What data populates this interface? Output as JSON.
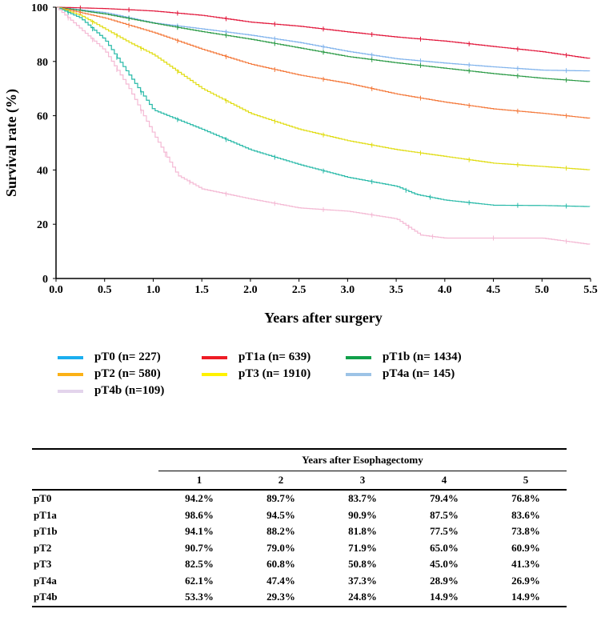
{
  "chart_data": {
    "type": "line",
    "title": "",
    "xlabel": "Years after surgery",
    "ylabel": "Survival rate (%)",
    "xlim": [
      0,
      5.5
    ],
    "ylim": [
      0,
      100
    ],
    "xticks": [
      "0.0",
      "0.5",
      "1.0",
      "1.5",
      "2.0",
      "2.5",
      "3.0",
      "3.5",
      "4.0",
      "4.5",
      "5.0",
      "5.5"
    ],
    "yticks": [
      "0",
      "20",
      "40",
      "60",
      "80",
      "100"
    ],
    "legend_position": "bottom",
    "series": [
      {
        "name": "pT0 (n= 227)",
        "legend_color": "#1aaeef",
        "line_color": "#7fb2ec",
        "x": [
          0,
          0.5,
          1,
          1.5,
          2,
          2.5,
          3,
          3.5,
          4,
          4.5,
          5,
          5.5
        ],
        "y": [
          100,
          98,
          94.2,
          92,
          89.7,
          87,
          83.7,
          81,
          79.4,
          78,
          76.8,
          76.5
        ]
      },
      {
        "name": "pT1a (n= 639)",
        "legend_color": "#ee1c25",
        "line_color": "#e2173b",
        "x": [
          0,
          0.5,
          1,
          1.5,
          2,
          2.5,
          3,
          3.5,
          4,
          4.5,
          5,
          5.5
        ],
        "y": [
          100,
          99.5,
          98.6,
          97,
          94.5,
          93,
          90.9,
          89,
          87.5,
          85.5,
          83.6,
          81
        ]
      },
      {
        "name": "pT1b (n= 1434)",
        "legend_color": "#10a04a",
        "line_color": "#2a9a45",
        "x": [
          0,
          0.5,
          1,
          1.5,
          2,
          2.5,
          3,
          3.5,
          4,
          4.5,
          5,
          5.5
        ],
        "y": [
          100,
          97.5,
          94.1,
          91,
          88.2,
          85,
          81.8,
          79.5,
          77.5,
          75.5,
          73.8,
          72.5
        ]
      },
      {
        "name": "pT2 (n= 580)",
        "legend_color": "#fbb116",
        "line_color": "#f4793b",
        "x": [
          0,
          0.5,
          1,
          1.5,
          2,
          2.5,
          3,
          3.5,
          4,
          4.5,
          5,
          5.5
        ],
        "y": [
          100,
          96,
          90.7,
          84.5,
          79,
          75,
          71.9,
          68,
          65,
          62.5,
          60.9,
          59
        ]
      },
      {
        "name": "pT3 (n= 1910)",
        "legend_color": "#fff200",
        "line_color": "#e0dc10",
        "x": [
          0,
          0.25,
          0.5,
          0.75,
          1,
          1.5,
          2,
          2.5,
          3,
          3.5,
          4,
          4.5,
          5,
          5.5
        ],
        "y": [
          100,
          97,
          92,
          87,
          82.5,
          70,
          60.8,
          55,
          50.8,
          47.5,
          45,
          42.5,
          41.3,
          40
        ]
      },
      {
        "name": "pT4a (n= 145)",
        "legend_color": "#9dc3e6",
        "line_color": "#27b9a8",
        "x": [
          0,
          0.25,
          0.5,
          0.75,
          1,
          1.5,
          2,
          2.5,
          3,
          3.5,
          3.7,
          4,
          4.5,
          5,
          5.5
        ],
        "y": [
          100,
          96,
          88,
          75,
          62.1,
          55,
          47.4,
          42,
          37.3,
          34,
          31,
          28.9,
          27,
          26.9,
          26.5
        ]
      },
      {
        "name": "pT4b (n=109)",
        "legend_color": "#e3d4ec",
        "line_color": "#f4b9d4",
        "x": [
          0,
          0.25,
          0.5,
          0.75,
          1,
          1.25,
          1.5,
          2,
          2.5,
          3,
          3.5,
          3.75,
          4,
          5,
          5.5
        ],
        "y": [
          100,
          92,
          84,
          70,
          53.3,
          38,
          33,
          29.3,
          26,
          24.8,
          22,
          16,
          14.9,
          14.9,
          12.5
        ]
      }
    ]
  },
  "table": {
    "group_header": "Years after Esophagectomy",
    "columns": [
      "1",
      "2",
      "3",
      "4",
      "5"
    ],
    "rows": [
      {
        "label": "pT0",
        "values": [
          "94.2%",
          "89.7%",
          "83.7%",
          "79.4%",
          "76.8%"
        ]
      },
      {
        "label": "pT1a",
        "values": [
          "98.6%",
          "94.5%",
          "90.9%",
          "87.5%",
          "83.6%"
        ]
      },
      {
        "label": "pT1b",
        "values": [
          "94.1%",
          "88.2%",
          "81.8%",
          "77.5%",
          "73.8%"
        ]
      },
      {
        "label": "pT2",
        "values": [
          "90.7%",
          "79.0%",
          "71.9%",
          "65.0%",
          "60.9%"
        ]
      },
      {
        "label": "pT3",
        "values": [
          "82.5%",
          "60.8%",
          "50.8%",
          "45.0%",
          "41.3%"
        ]
      },
      {
        "label": "pT4a",
        "values": [
          "62.1%",
          "47.4%",
          "37.3%",
          "28.9%",
          "26.9%"
        ]
      },
      {
        "label": "pT4b",
        "values": [
          "53.3%",
          "29.3%",
          "24.8%",
          "14.9%",
          "14.9%"
        ]
      }
    ]
  }
}
